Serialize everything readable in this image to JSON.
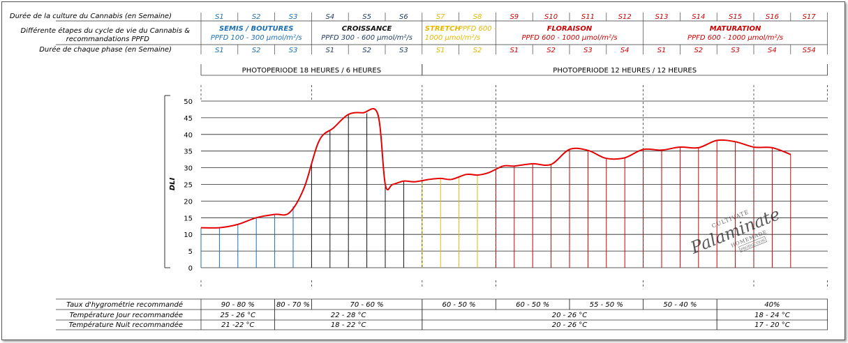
{
  "header": {
    "row_labels": [
      "Durée de la culture du Cannabis (en Semaine)",
      "Différente étapes du cycle de vie du Cannabis &",
      "recommandations PPFD",
      "Durée de chaque phase (en Semaine)"
    ],
    "weeks": [
      "S1",
      "S2",
      "S3",
      "S4",
      "S5",
      "S6",
      "S7",
      "S8",
      "S9",
      "S10",
      "S11",
      "S12",
      "S13",
      "S14",
      "S15",
      "S16",
      "S17"
    ],
    "phase_weeks": [
      "S1",
      "S2",
      "S3",
      "S1",
      "S2",
      "S3",
      "S1",
      "S2",
      "S1",
      "S2",
      "S3",
      "S4",
      "S1",
      "S2",
      "S3",
      "S4",
      "S54"
    ],
    "phases": [
      {
        "title": "SEMIS / BOUTURES",
        "ppfd": "PPFD 100 - 300 µmol/m²/s",
        "title_color": "#1a6fb5",
        "ppfd_color": "#1a6fb5"
      },
      {
        "title": "CROISSANCE",
        "ppfd": "PPFD 300 - 600 µmol/m²/s",
        "title_color": "#111111",
        "ppfd_color": "#1f3b66"
      },
      {
        "title": "STRETCH",
        "title2": "PPFD 600 -",
        "ppfd": "1000 µmol/m²/s",
        "title_color": "#e6b800",
        "ppfd_color": "#e6b800"
      },
      {
        "title": "FLORAISON",
        "ppfd": "PPFD 600 - 1000 µmol/m²/s",
        "title_color": "#cc0000",
        "ppfd_color": "#cc0000"
      },
      {
        "title": "MATURATION",
        "ppfd": "PPFD 600 - 1000 µmol/m²/s",
        "title_color": "#cc0000",
        "ppfd_color": "#cc0000"
      }
    ],
    "colors": {
      "blue": "#1a6fb5",
      "navy": "#1f3b66",
      "yellow": "#e6b800",
      "red": "#cc0000"
    }
  },
  "photoperiods": [
    "PHOTOPERIODE 18 HEURES / 6 HEURES",
    "PHOTOPERIODE 12 HEURES / 12 HEURES"
  ],
  "chart_data": {
    "type": "line",
    "ylabel": "DLI",
    "ylim": [
      0,
      50
    ],
    "yticks": [
      0,
      5,
      10,
      15,
      20,
      25,
      30,
      35,
      40,
      45,
      50
    ],
    "x_start_week": 1,
    "x_end_week": 17,
    "series": [
      {
        "color": "#e60000",
        "x": [
          1.0,
          1.5,
          2.0,
          2.5,
          3.0,
          3.4,
          3.8,
          4.2,
          4.6,
          5.0,
          5.4,
          5.8,
          6.0,
          6.2,
          6.5,
          6.8,
          7.2,
          7.5,
          7.8,
          8.2,
          8.5,
          8.8,
          9.2,
          9.5,
          10.0,
          10.5,
          11.0,
          11.5,
          12.0,
          12.5,
          13.0,
          13.5,
          14.0,
          14.5,
          15.0,
          15.5,
          16.0,
          16.5,
          17.0
        ],
        "y": [
          12,
          12,
          13,
          15,
          16,
          16.5,
          24,
          38,
          42,
          46,
          46.5,
          46,
          25,
          25,
          26,
          25.8,
          26.5,
          26.8,
          26.5,
          28,
          27.8,
          28.5,
          30.5,
          30.5,
          31.2,
          31,
          35.5,
          35.2,
          32.8,
          33,
          35.5,
          35.3,
          36.2,
          36,
          38.2,
          37.8,
          36.2,
          36,
          34
        ]
      }
    ]
  },
  "watermark": {
    "line1": "CULTIVATE",
    "line2": "Palaminate",
    "line3": "HOMEMADE",
    "line4": "PRODUCTION"
  },
  "table": {
    "rows": [
      {
        "label": "Taux d'hygrométrie recommandé",
        "cells": [
          {
            "from": 1,
            "to": 3,
            "text": "90 - 80 %"
          },
          {
            "from": 3,
            "to": 4,
            "text": "80 - 70 %"
          },
          {
            "from": 4,
            "to": 7,
            "text": "70 - 60 %"
          },
          {
            "from": 7,
            "to": 9,
            "text": "60 - 50 %"
          },
          {
            "from": 9,
            "to": 11,
            "text": "60 - 50 %"
          },
          {
            "from": 11,
            "to": 13,
            "text": "55 - 50 %"
          },
          {
            "from": 13,
            "to": 15,
            "text": "50 - 40 %"
          },
          {
            "from": 15,
            "to": 18,
            "text": "40%"
          }
        ]
      },
      {
        "label": "Température Jour recommandée",
        "cells": [
          {
            "from": 1,
            "to": 3,
            "text": "25 - 26 °C"
          },
          {
            "from": 3,
            "to": 7,
            "text": "22 - 28 °C"
          },
          {
            "from": 7,
            "to": 15,
            "text": "20 - 26 °C"
          },
          {
            "from": 15,
            "to": 18,
            "text": "18 - 24 °C"
          }
        ]
      },
      {
        "label": "Température Nuit recommandée",
        "cells": [
          {
            "from": 1,
            "to": 3,
            "text": "21 -22 °C"
          },
          {
            "from": 3,
            "to": 7,
            "text": "18 - 22 °C"
          },
          {
            "from": 7,
            "to": 15,
            "text": "20 - 26 °C"
          },
          {
            "from": 15,
            "to": 18,
            "text": "17 - 20 °C"
          }
        ]
      }
    ]
  }
}
